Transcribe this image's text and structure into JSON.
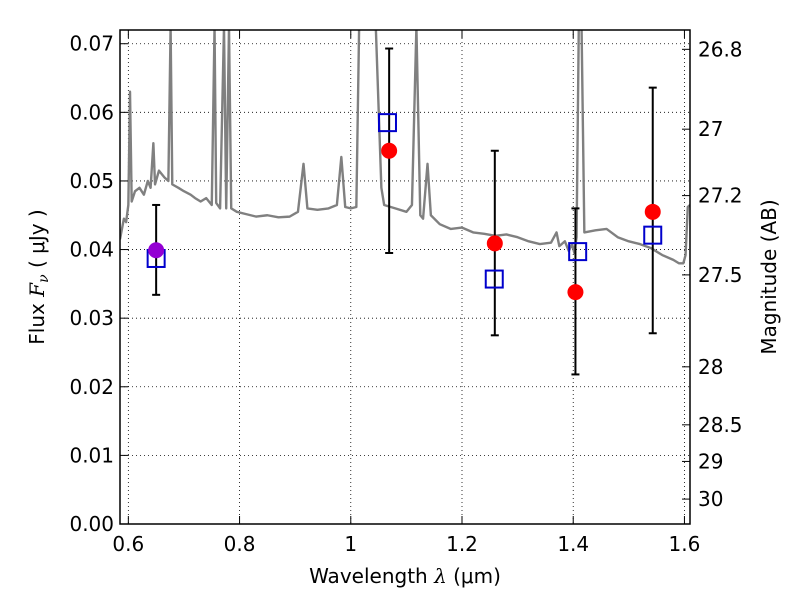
{
  "chart_data": {
    "type": "scatter",
    "xlabel": {
      "prefix": "Wavelength  ",
      "symbol": "λ",
      "unit": " (μm)"
    },
    "ylabel": {
      "prefix": "Flux  ",
      "symbol": "F",
      "subscript": "ν",
      "unit": "  ( μJy )"
    },
    "y2label": "Magnitude (AB)",
    "xlim": [
      0.585,
      1.61
    ],
    "ylim": [
      0.0,
      0.072
    ],
    "x_ticks": [
      {
        "value": 0.6,
        "label": "0.6"
      },
      {
        "value": 0.8,
        "label": "0.8"
      },
      {
        "value": 1.0,
        "label": "1"
      },
      {
        "value": 1.2,
        "label": "1.2"
      },
      {
        "value": 1.4,
        "label": "1.4"
      },
      {
        "value": 1.6,
        "label": "1.6"
      }
    ],
    "y_ticks": [
      {
        "value": 0.0,
        "label": "0.00"
      },
      {
        "value": 0.01,
        "label": "0.01"
      },
      {
        "value": 0.02,
        "label": "0.02"
      },
      {
        "value": 0.03,
        "label": "0.03"
      },
      {
        "value": 0.04,
        "label": "0.04"
      },
      {
        "value": 0.05,
        "label": "0.05"
      },
      {
        "value": 0.06,
        "label": "0.06"
      },
      {
        "value": 0.07,
        "label": "0.07"
      }
    ],
    "y2_ticks": [
      {
        "value": 26.8,
        "label": "26.8"
      },
      {
        "value": 27.0,
        "label": "27"
      },
      {
        "value": 27.2,
        "label": "27.2"
      },
      {
        "value": 27.5,
        "label": "27.5"
      },
      {
        "value": 28.0,
        "label": "28"
      },
      {
        "value": 28.5,
        "label": "28.5"
      },
      {
        "value": 29.0,
        "label": "29"
      },
      {
        "value": 30.0,
        "label": "30"
      }
    ],
    "grid": true,
    "colors": {
      "spectrum": "#808080",
      "observed": "#ff0000",
      "observed_first": "#9400d3",
      "model": "#0000cc",
      "errorbar": "#000000"
    },
    "observed": [
      {
        "x": 0.65,
        "y": 0.0399,
        "err_low": 0.0334,
        "err_high": 0.0465
      },
      {
        "x": 1.069,
        "y": 0.0544,
        "err_low": 0.0395,
        "err_high": 0.0693
      },
      {
        "x": 1.259,
        "y": 0.0409,
        "err_low": 0.0275,
        "err_high": 0.0544
      },
      {
        "x": 1.404,
        "y": 0.0338,
        "err_low": 0.0218,
        "err_high": 0.046
      },
      {
        "x": 1.543,
        "y": 0.0455,
        "err_low": 0.0278,
        "err_high": 0.0636
      }
    ],
    "model": [
      {
        "x": 0.65,
        "y": 0.0387
      },
      {
        "x": 1.066,
        "y": 0.0585
      },
      {
        "x": 1.258,
        "y": 0.0357
      },
      {
        "x": 1.408,
        "y": 0.0397
      },
      {
        "x": 1.543,
        "y": 0.0421
      }
    ],
    "spectrum": [
      [
        0.585,
        0.0415
      ],
      [
        0.592,
        0.0445
      ],
      [
        0.596,
        0.044
      ],
      [
        0.6,
        0.0465
      ],
      [
        0.603,
        0.063
      ],
      [
        0.606,
        0.047
      ],
      [
        0.612,
        0.0485
      ],
      [
        0.62,
        0.049
      ],
      [
        0.628,
        0.048
      ],
      [
        0.635,
        0.05
      ],
      [
        0.64,
        0.049
      ],
      [
        0.645,
        0.0555
      ],
      [
        0.648,
        0.0495
      ],
      [
        0.655,
        0.0515
      ],
      [
        0.665,
        0.0505
      ],
      [
        0.672,
        0.05
      ],
      [
        0.676,
        0.072
      ],
      [
        0.679,
        0.0495
      ],
      [
        0.69,
        0.049
      ],
      [
        0.7,
        0.0485
      ],
      [
        0.712,
        0.048
      ],
      [
        0.72,
        0.0475
      ],
      [
        0.73,
        0.047
      ],
      [
        0.74,
        0.0475
      ],
      [
        0.75,
        0.0465
      ],
      [
        0.755,
        0.072
      ],
      [
        0.758,
        0.0468
      ],
      [
        0.765,
        0.046
      ],
      [
        0.772,
        0.072
      ],
      [
        0.776,
        0.046
      ],
      [
        0.781,
        0.072
      ],
      [
        0.785,
        0.046
      ],
      [
        0.795,
        0.0455
      ],
      [
        0.81,
        0.0452
      ],
      [
        0.83,
        0.0448
      ],
      [
        0.85,
        0.045
      ],
      [
        0.87,
        0.0447
      ],
      [
        0.89,
        0.0448
      ],
      [
        0.905,
        0.0455
      ],
      [
        0.915,
        0.0525
      ],
      [
        0.922,
        0.046
      ],
      [
        0.94,
        0.0458
      ],
      [
        0.96,
        0.046
      ],
      [
        0.975,
        0.0465
      ],
      [
        0.983,
        0.0535
      ],
      [
        0.99,
        0.0462
      ],
      [
        1.0,
        0.046
      ],
      [
        1.01,
        0.0462
      ],
      [
        1.015,
        0.072
      ],
      [
        1.03,
        0.072
      ],
      [
        1.045,
        0.072
      ],
      [
        1.055,
        0.049
      ],
      [
        1.06,
        0.0465
      ],
      [
        1.08,
        0.046
      ],
      [
        1.1,
        0.0455
      ],
      [
        1.11,
        0.0465
      ],
      [
        1.118,
        0.072
      ],
      [
        1.125,
        0.045
      ],
      [
        1.13,
        0.0445
      ],
      [
        1.138,
        0.0525
      ],
      [
        1.144,
        0.045
      ],
      [
        1.16,
        0.0437
      ],
      [
        1.18,
        0.043
      ],
      [
        1.2,
        0.0432
      ],
      [
        1.22,
        0.0425
      ],
      [
        1.24,
        0.0423
      ],
      [
        1.26,
        0.042
      ],
      [
        1.28,
        0.0422
      ],
      [
        1.3,
        0.0418
      ],
      [
        1.32,
        0.0412
      ],
      [
        1.34,
        0.0408
      ],
      [
        1.36,
        0.041
      ],
      [
        1.37,
        0.0425
      ],
      [
        1.375,
        0.0405
      ],
      [
        1.385,
        0.0412
      ],
      [
        1.392,
        0.0398
      ],
      [
        1.398,
        0.0408
      ],
      [
        1.402,
        0.0395
      ],
      [
        1.406,
        0.0418
      ],
      [
        1.41,
        0.072
      ],
      [
        1.415,
        0.072
      ],
      [
        1.42,
        0.0425
      ],
      [
        1.44,
        0.0428
      ],
      [
        1.46,
        0.043
      ],
      [
        1.48,
        0.0418
      ],
      [
        1.5,
        0.0412
      ],
      [
        1.52,
        0.0408
      ],
      [
        1.54,
        0.0402
      ],
      [
        1.56,
        0.0392
      ],
      [
        1.58,
        0.0385
      ],
      [
        1.59,
        0.038
      ],
      [
        1.598,
        0.038
      ],
      [
        1.602,
        0.0392
      ],
      [
        1.606,
        0.0462
      ],
      [
        1.61,
        0.0465
      ]
    ]
  }
}
